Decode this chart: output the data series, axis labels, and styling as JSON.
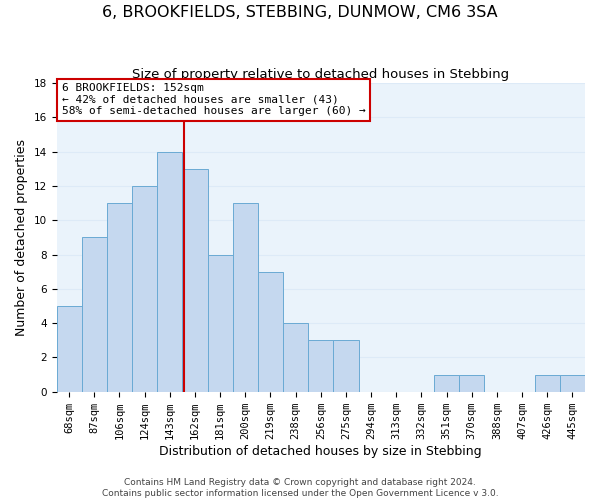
{
  "title": "6, BROOKFIELDS, STEBBING, DUNMOW, CM6 3SA",
  "subtitle": "Size of property relative to detached houses in Stebbing",
  "xlabel": "Distribution of detached houses by size in Stebbing",
  "ylabel": "Number of detached properties",
  "bar_labels": [
    "68sqm",
    "87sqm",
    "106sqm",
    "124sqm",
    "143sqm",
    "162sqm",
    "181sqm",
    "200sqm",
    "219sqm",
    "238sqm",
    "256sqm",
    "275sqm",
    "294sqm",
    "313sqm",
    "332sqm",
    "351sqm",
    "370sqm",
    "388sqm",
    "407sqm",
    "426sqm",
    "445sqm"
  ],
  "bar_values": [
    5,
    9,
    11,
    12,
    14,
    13,
    8,
    11,
    7,
    4,
    3,
    3,
    0,
    0,
    0,
    1,
    1,
    0,
    0,
    1,
    1
  ],
  "bar_color": "#c5d8ef",
  "bar_edge_color": "#6aaad4",
  "grid_color": "#ddeaf7",
  "background_color": "#eaf3fb",
  "vline_x": 4.575,
  "vline_color": "#cc0000",
  "annotation_line1": "6 BROOKFIELDS: 152sqm",
  "annotation_line2": "← 42% of detached houses are smaller (43)",
  "annotation_line3": "58% of semi-detached houses are larger (60) →",
  "annotation_box_color": "#ffffff",
  "annotation_box_edge": "#cc0000",
  "ylim": [
    0,
    18
  ],
  "yticks": [
    0,
    2,
    4,
    6,
    8,
    10,
    12,
    14,
    16,
    18
  ],
  "footer_line1": "Contains HM Land Registry data © Crown copyright and database right 2024.",
  "footer_line2": "Contains public sector information licensed under the Open Government Licence v 3.0.",
  "title_fontsize": 11.5,
  "subtitle_fontsize": 9.5,
  "xlabel_fontsize": 9,
  "ylabel_fontsize": 9,
  "tick_fontsize": 7.5,
  "annotation_fontsize": 8,
  "footer_fontsize": 6.5
}
